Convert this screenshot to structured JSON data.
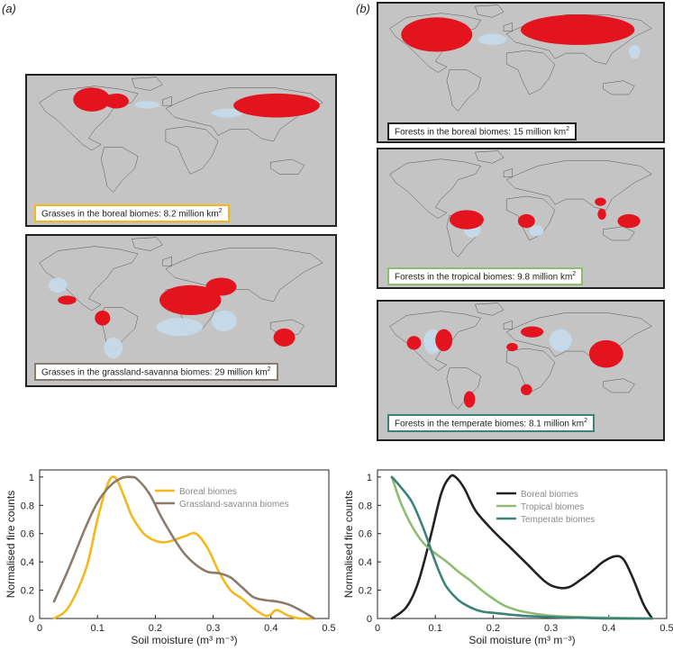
{
  "panels": {
    "a": "(a)",
    "b": "(b)"
  },
  "maps": [
    {
      "caption": "Grasses in the boreal biomes: 8.2 million km",
      "sup": "2",
      "border": "#f2b81d",
      "fire_regions": [
        [
          0.15,
          0.08,
          0.12,
          0.16
        ],
        [
          0.25,
          0.12,
          0.08,
          0.1
        ],
        [
          0.67,
          0.12,
          0.28,
          0.16
        ]
      ],
      "lowfire_regions": [
        [
          0.35,
          0.17,
          0.08,
          0.05
        ],
        [
          0.6,
          0.22,
          0.1,
          0.06
        ]
      ]
    },
    {
      "caption": "Grasses in the grassland-savanna biomes: 29 million km",
      "sup": "2",
      "border": "#8b7b6b",
      "fire_regions": [
        [
          0.43,
          0.33,
          0.2,
          0.2
        ],
        [
          0.58,
          0.28,
          0.1,
          0.12
        ],
        [
          0.22,
          0.5,
          0.05,
          0.1
        ],
        [
          0.8,
          0.62,
          0.07,
          0.12
        ],
        [
          0.1,
          0.4,
          0.06,
          0.06
        ]
      ],
      "lowfire_regions": [
        [
          0.25,
          0.68,
          0.06,
          0.14
        ],
        [
          0.6,
          0.5,
          0.08,
          0.14
        ],
        [
          0.07,
          0.28,
          0.06,
          0.1
        ],
        [
          0.42,
          0.55,
          0.15,
          0.12
        ]
      ]
    },
    {
      "caption": "Forests in the boreal biomes: 15 million km",
      "sup": "2",
      "border": "#222",
      "fire_regions": [
        [
          0.08,
          0.1,
          0.25,
          0.25
        ],
        [
          0.5,
          0.08,
          0.4,
          0.22
        ]
      ],
      "lowfire_regions": [
        [
          0.35,
          0.22,
          0.1,
          0.08
        ],
        [
          0.88,
          0.3,
          0.04,
          0.1
        ]
      ]
    },
    {
      "caption": "Forests in the tropical biomes: 9.8 million km",
      "sup": "2",
      "border": "#8fbc73",
      "fire_regions": [
        [
          0.25,
          0.44,
          0.12,
          0.14
        ],
        [
          0.49,
          0.47,
          0.06,
          0.1
        ],
        [
          0.77,
          0.43,
          0.03,
          0.08
        ],
        [
          0.84,
          0.47,
          0.08,
          0.1
        ],
        [
          0.76,
          0.35,
          0.04,
          0.06
        ]
      ],
      "lowfire_regions": [
        [
          0.3,
          0.52,
          0.06,
          0.12
        ],
        [
          0.53,
          0.55,
          0.05,
          0.08
        ]
      ]
    },
    {
      "caption": "Forests in the temperate biomes: 8.1 million km",
      "sup": "2",
      "border": "#3c8278",
      "fire_regions": [
        [
          0.1,
          0.25,
          0.05,
          0.1
        ],
        [
          0.2,
          0.2,
          0.06,
          0.16
        ],
        [
          0.5,
          0.18,
          0.08,
          0.08
        ],
        [
          0.74,
          0.28,
          0.12,
          0.2
        ],
        [
          0.45,
          0.3,
          0.04,
          0.06
        ],
        [
          0.3,
          0.65,
          0.04,
          0.12
        ],
        [
          0.5,
          0.6,
          0.04,
          0.08
        ]
      ],
      "lowfire_regions": [
        [
          0.16,
          0.2,
          0.06,
          0.18
        ],
        [
          0.6,
          0.2,
          0.08,
          0.16
        ]
      ]
    }
  ],
  "map_colors": {
    "fire": "#e3141e",
    "lowfire": "#c7dced",
    "ocean": "#c4c4c4",
    "coast": "#222222"
  },
  "chart_data": [
    {
      "type": "line",
      "xlabel": "Soil moisture (m³ m⁻³)",
      "ylabel": "Normalised fire counts",
      "xlim": [
        0,
        0.5
      ],
      "ylim": [
        0,
        1.05
      ],
      "xticks": [
        "0",
        "0.1",
        "0.2",
        "0.3",
        "0.4",
        "0.5"
      ],
      "yticks": [
        "0",
        "0.2",
        "0.4",
        "0.6",
        "0.8",
        "1"
      ],
      "legend_position": "top-right",
      "series": [
        {
          "name": "Boreal biomes",
          "color": "#f2b81d",
          "x": [
            0.025,
            0.05,
            0.08,
            0.1,
            0.115,
            0.125,
            0.135,
            0.15,
            0.16,
            0.18,
            0.2,
            0.22,
            0.25,
            0.27,
            0.29,
            0.31,
            0.33,
            0.35,
            0.37,
            0.39,
            0.4,
            0.41,
            0.43,
            0.45,
            0.475
          ],
          "y": [
            0.0,
            0.08,
            0.35,
            0.7,
            0.92,
            1.0,
            0.97,
            0.82,
            0.72,
            0.6,
            0.55,
            0.54,
            0.58,
            0.6,
            0.5,
            0.33,
            0.2,
            0.14,
            0.07,
            0.02,
            0.03,
            0.06,
            0.02,
            0.0,
            0.0
          ]
        },
        {
          "name": "Grassland-savanna biomes",
          "color": "#8b7b6b",
          "x": [
            0.025,
            0.05,
            0.08,
            0.1,
            0.12,
            0.14,
            0.16,
            0.17,
            0.19,
            0.21,
            0.23,
            0.25,
            0.27,
            0.29,
            0.31,
            0.33,
            0.35,
            0.37,
            0.39,
            0.41,
            0.43,
            0.45,
            0.475
          ],
          "y": [
            0.12,
            0.35,
            0.65,
            0.82,
            0.93,
            0.99,
            1.0,
            0.98,
            0.88,
            0.72,
            0.58,
            0.46,
            0.38,
            0.33,
            0.32,
            0.29,
            0.22,
            0.15,
            0.13,
            0.12,
            0.1,
            0.06,
            0.0
          ]
        }
      ]
    },
    {
      "type": "line",
      "xlabel": "Soil moisture (m³ m⁻³)",
      "ylabel": "Normalised fire counts",
      "xlim": [
        0,
        0.5
      ],
      "ylim": [
        0,
        1.05
      ],
      "xticks": [
        "0",
        "0.1",
        "0.2",
        "0.3",
        "0.4",
        "0.5"
      ],
      "yticks": [
        "0",
        "0.2",
        "0.4",
        "0.6",
        "0.8",
        "1"
      ],
      "legend_position": "top-right",
      "series": [
        {
          "name": "Boreal biomes",
          "color": "#222222",
          "x": [
            0.025,
            0.05,
            0.07,
            0.09,
            0.11,
            0.125,
            0.135,
            0.15,
            0.17,
            0.2,
            0.23,
            0.26,
            0.29,
            0.31,
            0.33,
            0.35,
            0.37,
            0.39,
            0.41,
            0.425,
            0.44,
            0.46,
            0.475
          ],
          "y": [
            0.0,
            0.08,
            0.25,
            0.55,
            0.88,
            1.0,
            1.0,
            0.92,
            0.76,
            0.62,
            0.5,
            0.38,
            0.26,
            0.22,
            0.22,
            0.27,
            0.33,
            0.4,
            0.44,
            0.42,
            0.3,
            0.1,
            0.0
          ]
        },
        {
          "name": "Tropical biomes",
          "color": "#8fbc73",
          "x": [
            0.025,
            0.04,
            0.06,
            0.08,
            0.1,
            0.12,
            0.14,
            0.16,
            0.18,
            0.2,
            0.22,
            0.25,
            0.3,
            0.35,
            0.4,
            0.475
          ],
          "y": [
            1.0,
            0.82,
            0.65,
            0.53,
            0.46,
            0.4,
            0.33,
            0.27,
            0.2,
            0.14,
            0.09,
            0.05,
            0.02,
            0.01,
            0.005,
            0.0
          ]
        },
        {
          "name": "Temperate biomes",
          "color": "#3c8278",
          "x": [
            0.025,
            0.04,
            0.06,
            0.08,
            0.1,
            0.11,
            0.12,
            0.14,
            0.16,
            0.18,
            0.2,
            0.25,
            0.3,
            0.35,
            0.4,
            0.475
          ],
          "y": [
            1.0,
            0.93,
            0.82,
            0.63,
            0.4,
            0.3,
            0.22,
            0.13,
            0.08,
            0.05,
            0.04,
            0.02,
            0.01,
            0.005,
            0.0,
            0.0
          ]
        }
      ]
    }
  ]
}
